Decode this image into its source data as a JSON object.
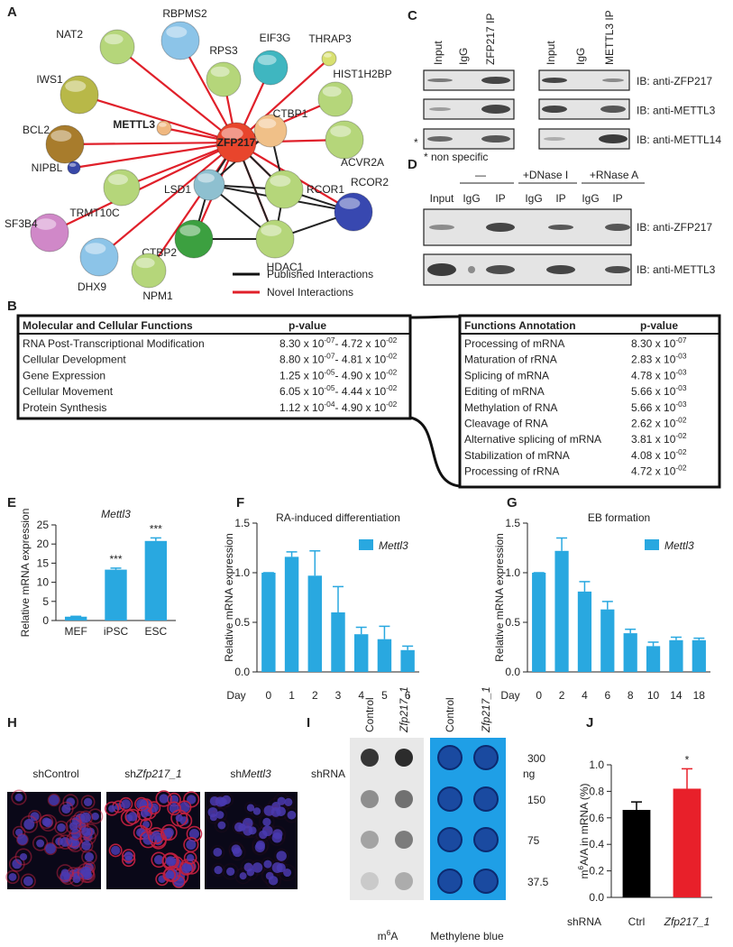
{
  "panel_labels": [
    "A",
    "B",
    "C",
    "D",
    "E",
    "F",
    "G",
    "H",
    "I",
    "J"
  ],
  "network": {
    "nodes": [
      "ZFP217",
      "NAT2",
      "RBPMS2",
      "RPS3",
      "EIF3G",
      "THRAP3",
      "HIST1H2BP",
      "IWS1",
      "METTL3",
      "CTBP1",
      "ACVR2A",
      "BCL2",
      "NIPBL",
      "TRMT10C",
      "LSD1",
      "RCOR1",
      "RCOR2",
      "SF3B4",
      "CTBP2",
      "HDAC1",
      "DHX9",
      "NPM1"
    ],
    "legend": [
      "Published Interactions",
      "Novel Interactions"
    ]
  },
  "coip": {
    "lanes": [
      "Input",
      "IgG",
      "ZFP217 IP",
      "Input",
      "IgG",
      "METTL3 IP"
    ],
    "blots": [
      "IB: anti-ZFP217",
      "IB: anti-METTL3",
      "IB: anti-METTL14"
    ],
    "marker": "*",
    "note": "* non specific"
  },
  "nuclease": {
    "groups": [
      "—",
      "+DNase I",
      "+RNase A"
    ],
    "lanes": [
      "Input",
      "IgG",
      "IP",
      "IgG",
      "IP",
      "IgG",
      "IP"
    ],
    "blots": [
      "IB: anti-ZFP217",
      "IB: anti-METTL3"
    ]
  },
  "ipa": {
    "left": {
      "headers": [
        "Molecular and Cellular Functions",
        "p-value"
      ],
      "rows": [
        {
          "name": "RNA Post-Transcriptional Modification",
          "p": [
            "8.30 x 10",
            "-07",
            "- 4.72 x 10",
            "-02"
          ]
        },
        {
          "name": "Cellular Development",
          "p": [
            "8.80 x 10",
            "-07",
            "- 4.81 x 10",
            "-02"
          ]
        },
        {
          "name": "Gene Expression",
          "p": [
            "1.25 x 10",
            "-05",
            "- 4.90 x 10",
            "-02"
          ]
        },
        {
          "name": "Cellular Movement",
          "p": [
            "6.05 x 10",
            "-05",
            "- 4.44 x 10",
            "-02"
          ]
        },
        {
          "name": "Protein Synthesis",
          "p": [
            "1.12 x 10",
            "-04",
            "- 4.90 x 10",
            "-02"
          ]
        }
      ]
    },
    "right": {
      "headers": [
        "Functions Annotation",
        "p-value"
      ],
      "rows": [
        {
          "name": "Processing of mRNA",
          "p": [
            "8.30 x 10",
            "-07"
          ]
        },
        {
          "name": "Maturation of rRNA",
          "p": [
            "2.83 x 10",
            "-03"
          ]
        },
        {
          "name": "Splicing of mRNA",
          "p": [
            "4.78 x 10",
            "-03"
          ]
        },
        {
          "name": "Editing of mRNA",
          "p": [
            "5.66 x 10",
            "-03"
          ]
        },
        {
          "name": "Methylation of RNA",
          "p": [
            "5.66 x 10",
            "-03"
          ]
        },
        {
          "name": "Cleavage of RNA",
          "p": [
            "2.62 x 10",
            "-02"
          ]
        },
        {
          "name": "Alternative splicing of mRNA",
          "p": [
            "3.81 x 10",
            "-02"
          ]
        },
        {
          "name": "Stabilization of mRNA",
          "p": [
            "4.08 x 10",
            "-02"
          ]
        },
        {
          "name": "Processing of rRNA",
          "p": [
            "4.72 x 10",
            "-02"
          ]
        }
      ]
    }
  },
  "chart_data": [
    {
      "type": "bar",
      "title": "Mettl3",
      "ylabel": [
        "Relative mRNA expression"
      ],
      "categories": [
        "MEF",
        "iPSC",
        "ESC"
      ],
      "series": [
        {
          "color": "#29a8e0",
          "values": [
            1.0,
            13.3,
            20.8
          ],
          "errors": [
            0.1,
            0.4,
            0.8
          ]
        }
      ],
      "annotations": [
        null,
        "***",
        "***"
      ],
      "ylim": [
        0,
        25
      ],
      "yticks": [
        0,
        5,
        10,
        15,
        20,
        25
      ]
    },
    {
      "type": "bar",
      "title": "RA-induced differentiation",
      "ylabel": [
        "Relative mRNA expression"
      ],
      "xlabel": "Day",
      "categories": [
        "0",
        "1",
        "2",
        "3",
        "4",
        "5",
        "6"
      ],
      "series": [
        {
          "name": "Mettl3",
          "color": "#29a8e0",
          "values": [
            1.0,
            1.16,
            0.97,
            0.6,
            0.38,
            0.33,
            0.22
          ],
          "errors": [
            0,
            0.05,
            0.25,
            0.26,
            0.07,
            0.13,
            0.04
          ]
        }
      ],
      "ylim": [
        0,
        1.5
      ],
      "yticks": [
        {
          "value": 0,
          "label": "0.0"
        },
        0.5,
        {
          "value": 1,
          "label": "1.0"
        },
        1.5
      ]
    },
    {
      "type": "bar",
      "title": "EB formation",
      "ylabel": [
        "Relative mRNA expression"
      ],
      "xlabel": "Day",
      "categories": [
        "0",
        "2",
        "4",
        "6",
        "8",
        "10",
        "14",
        "18"
      ],
      "series": [
        {
          "name": "Mettl3",
          "color": "#29a8e0",
          "values": [
            1.0,
            1.22,
            0.81,
            0.63,
            0.39,
            0.26,
            0.32,
            0.32
          ],
          "errors": [
            0,
            0.13,
            0.1,
            0.08,
            0.04,
            0.04,
            0.03,
            0.02
          ]
        }
      ],
      "ylim": [
        0,
        1.5
      ],
      "yticks": [
        {
          "value": 0,
          "label": "0.0"
        },
        0.5,
        {
          "value": 1,
          "label": "1.0"
        },
        1.5
      ]
    },
    {
      "type": "bar",
      "ylabel": [
        "m",
        "6",
        "A/A in mRNA (%)"
      ],
      "xlabel": "shRNA",
      "categories": [
        "Ctrl",
        "Zfp217_1"
      ],
      "series": [
        {
          "colors": [
            "#000000",
            "#e8202a"
          ],
          "values": [
            0.66,
            0.82
          ],
          "errors": [
            0.06,
            0.15
          ]
        }
      ],
      "annotations": [
        null,
        "*"
      ],
      "ylim": [
        0,
        1.0
      ],
      "yticks": [
        {
          "value": 0,
          "label": "0.0"
        },
        0.2,
        0.4,
        0.6,
        0.8,
        {
          "value": 1,
          "label": "1.0"
        }
      ]
    }
  ],
  "staining": {
    "labels": [
      [
        "shControl"
      ],
      [
        "sh",
        "Zfp217_1"
      ],
      [
        "sh",
        "Mettl3"
      ]
    ]
  },
  "dot_blot": {
    "row_label": "shRNA",
    "columns": [
      "Control",
      "Zfp217_1",
      "Control",
      "Zfp217_1"
    ],
    "unit": "ng",
    "amounts": [
      300,
      150,
      75,
      37.5
    ],
    "captions": [
      [
        "m",
        "6",
        "A"
      ],
      [
        "Methylene blue"
      ]
    ]
  }
}
